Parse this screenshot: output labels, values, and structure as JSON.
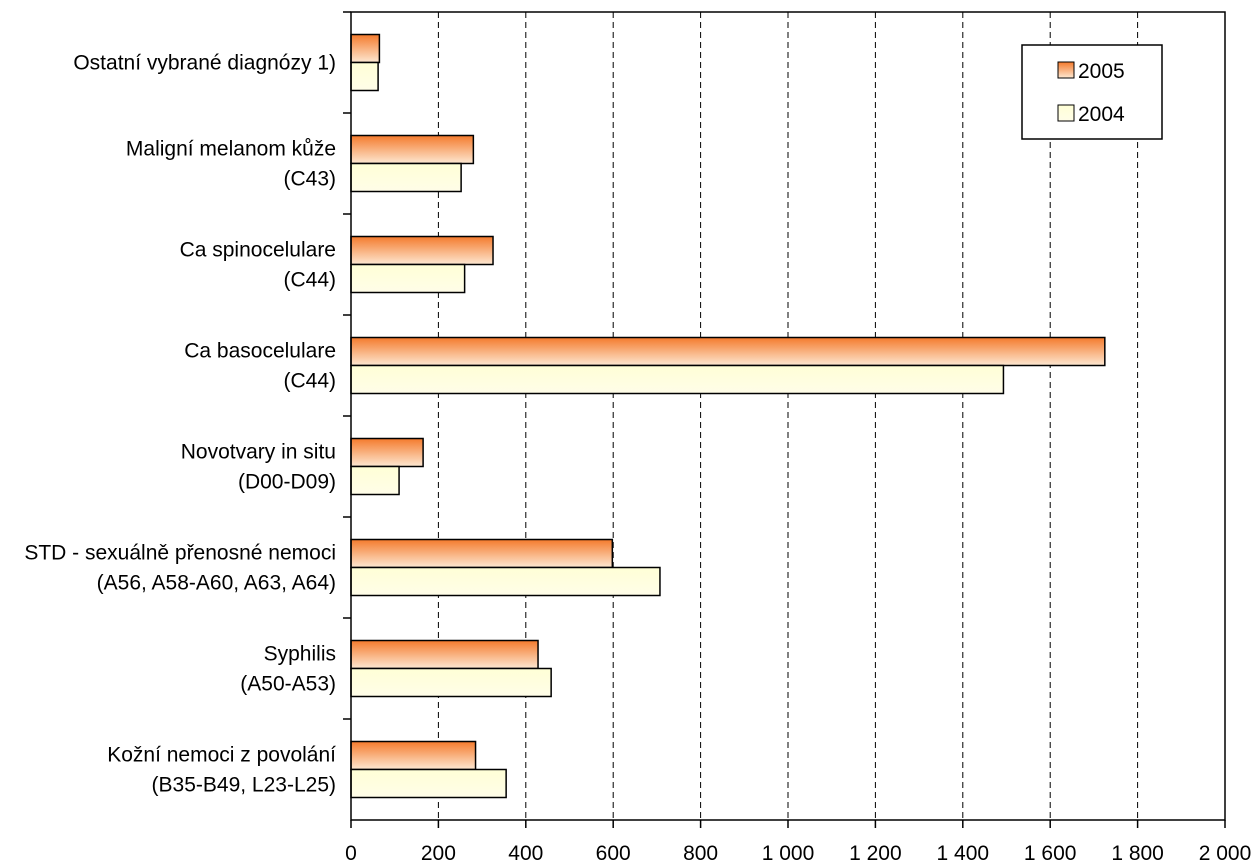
{
  "chart_data": {
    "type": "bar",
    "orientation": "horizontal",
    "categories": [
      [
        "Ostatní vybrané diagnózy 1)"
      ],
      [
        "Maligní melanom kůže",
        "(C43)"
      ],
      [
        "Ca spinocelulare",
        "(C44)"
      ],
      [
        "Ca basocelulare",
        "(C44)"
      ],
      [
        "Novotvary in situ",
        "(D00-D09)"
      ],
      [
        "STD - sexuálně přenosné nemoci",
        "(A56, A58-A60, A63, A64)"
      ],
      [
        "Syphilis",
        "(A50-A53)"
      ],
      [
        "Kožní nemoci z povolání",
        "(B35-B49, L23-L25)"
      ]
    ],
    "series": [
      {
        "name": "2005",
        "values": [
          65,
          280,
          325,
          1725,
          165,
          598,
          428,
          285
        ],
        "color_start": "#f47a2c",
        "color_end": "#fde8d2"
      },
      {
        "name": "2004",
        "values": [
          62,
          252,
          260,
          1493,
          110,
          707,
          458,
          355
        ],
        "color_start": "#ffffd6",
        "color_end": "#fffde8"
      }
    ],
    "xlim": [
      0,
      2000
    ],
    "x_ticks": [
      0,
      200,
      400,
      600,
      800,
      1000,
      1200,
      1400,
      1600,
      1800,
      2000
    ],
    "x_tick_labels": [
      "0",
      "200",
      "400",
      "600",
      "800",
      "1 000",
      "1 200",
      "1 400",
      "1 600",
      "1 800",
      "2 000"
    ],
    "xlabel": "",
    "ylabel": "",
    "grid": "vertical dashed",
    "legend": {
      "position": "top-right",
      "entries": [
        "2005",
        "2004"
      ]
    }
  }
}
